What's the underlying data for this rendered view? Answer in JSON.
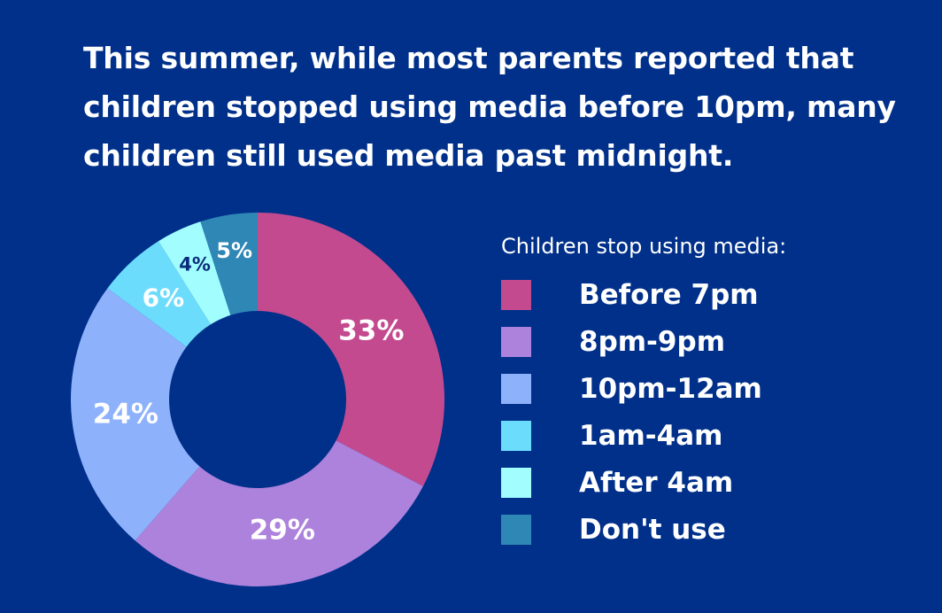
{
  "chart_data": {
    "type": "pie",
    "title": "This summer, while most parents reported that children stopped using media before 10pm, many children still used media past midnight.",
    "legend_title": "Children stop using media:",
    "legend_position": "right",
    "donut": true,
    "series": [
      {
        "name": "Before 7pm",
        "value": 33,
        "label": "33%",
        "color": "#c44a90",
        "label_color": "#ffffff"
      },
      {
        "name": "8pm-9pm",
        "value": 29,
        "label": "29%",
        "color": "#ad82dc",
        "label_color": "#ffffff"
      },
      {
        "name": "10pm-12am",
        "value": 24,
        "label": "24%",
        "color": "#8eb1fb",
        "label_color": "#ffffff"
      },
      {
        "name": "1am-4am",
        "value": 6,
        "label": "6%",
        "color": "#6cdcfc",
        "label_color": "#ffffff"
      },
      {
        "name": "After 4am",
        "value": 4,
        "label": "4%",
        "color": "#a1fdfe",
        "label_color": "#0a2a7a"
      },
      {
        "name": "Don't use",
        "value": 5,
        "label": "5%",
        "color": "#2f87b6",
        "label_color": "#ffffff"
      }
    ]
  }
}
